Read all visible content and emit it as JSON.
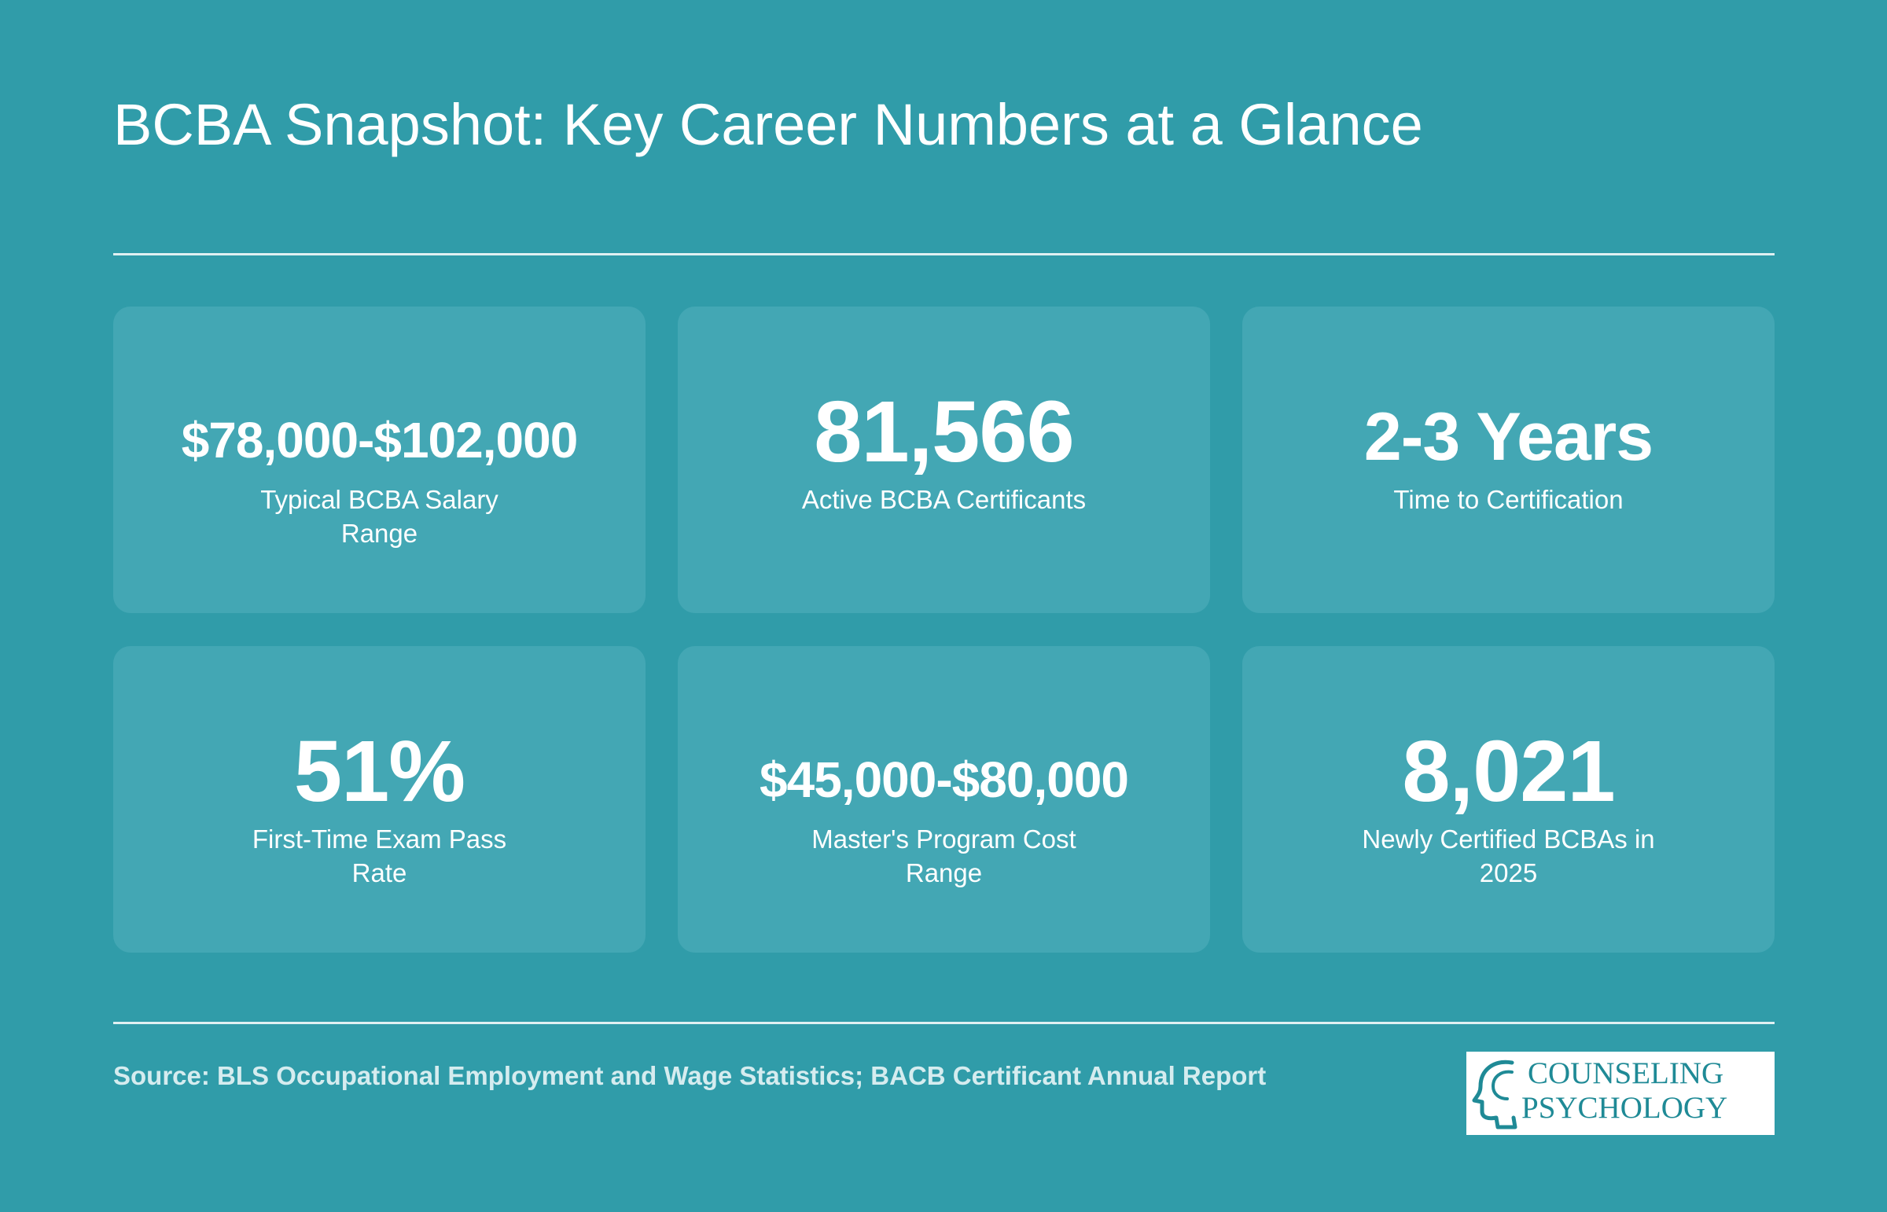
{
  "title": "BCBA Snapshot: Key Career Numbers at a Glance",
  "cards": [
    {
      "value": "$78,000-$102,000",
      "label": "Typical BCBA Salary Range"
    },
    {
      "value": "81,566",
      "label": "Active BCBA Certificants"
    },
    {
      "value": "2-3 Years",
      "label": "Time to Certification"
    },
    {
      "value": "51%",
      "label": "First-Time Exam Pass Rate"
    },
    {
      "value": "$45,000-$80,000",
      "label": "Master's Program Cost Range"
    },
    {
      "value": "8,021",
      "label": "Newly Certified BCBAs in 2025"
    }
  ],
  "source": "Source: BLS Occupational Employment and Wage Statistics; BACB Certificant Annual Report",
  "logo": {
    "line1": "COUNSELING",
    "line2": "PSYCHOLOGY",
    "icon": "head-profile-icon"
  },
  "colors": {
    "background": "#309ca9",
    "card": "#43a7b4",
    "logo_text": "#1f8a96"
  }
}
